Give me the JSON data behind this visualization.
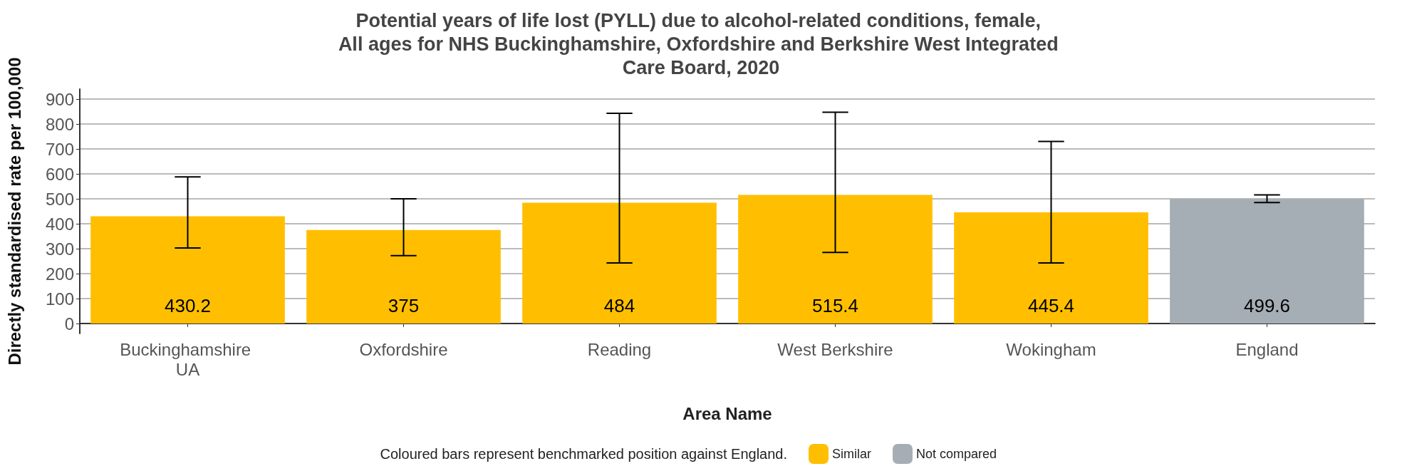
{
  "chart_data": {
    "type": "bar",
    "title": "Potential years of life lost (PYLL) due to alcohol-related conditions, female, All ages for NHS Buckinghamshire, Oxfordshire and Berkshire West Integrated Care Board, 2020",
    "xlabel": "Area Name",
    "ylabel": "Directly standardised rate per 100,000",
    "legend_title": "Coloured bars represent benchmarked position against England.",
    "categories": [
      "Buckinghamshire UA",
      "Oxfordshire",
      "Reading",
      "West Berkshire",
      "Wokingham",
      "England"
    ],
    "series": [
      {
        "name": "Similar",
        "color": "#ffbf00",
        "values": [
          430.2,
          375,
          484,
          515.4,
          445.4,
          null
        ],
        "errors": [
          [
            303,
            588
          ],
          [
            272,
            500
          ],
          [
            243,
            843
          ],
          [
            285,
            847
          ],
          [
            243,
            730
          ],
          null
        ]
      },
      {
        "name": "Not compared",
        "color": "#a6aeb5",
        "values": [
          null,
          null,
          null,
          null,
          null,
          499.6
        ],
        "errors": [
          null,
          null,
          null,
          null,
          null,
          [
            485,
            516
          ]
        ]
      }
    ],
    "ylim": [
      -40,
      940
    ],
    "yticks": [
      0,
      100,
      200,
      300,
      400,
      500,
      600,
      700,
      800,
      900
    ],
    "grid": "y",
    "legend": "bottom",
    "data_labels": true
  }
}
